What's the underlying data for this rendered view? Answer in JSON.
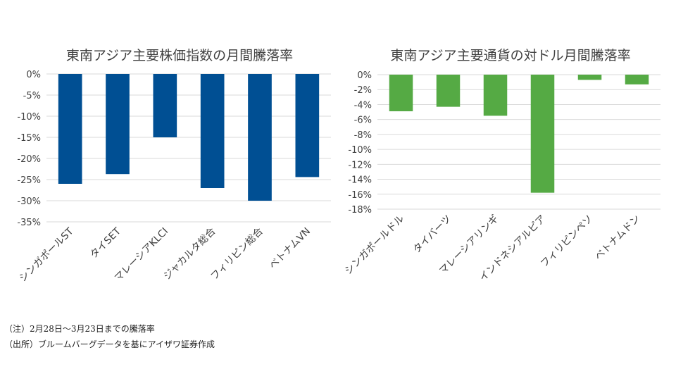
{
  "chart_data": [
    {
      "type": "bar",
      "title": "東南アジア主要株価指数の月間騰落率",
      "categories": [
        "シンガポールST",
        "タイSET",
        "マレーシアKLCI",
        "ジャカルタ総合",
        "フィリピン総合",
        "ベトナムVN"
      ],
      "values": [
        -26,
        -23.7,
        -15,
        -27,
        -30,
        -24.4
      ],
      "ylim": [
        -35,
        0
      ],
      "yticks": [
        0,
        -5,
        -10,
        -15,
        -20,
        -25,
        -30,
        -35
      ],
      "tick_labels": [
        "0%",
        "-5%",
        "-10%",
        "-15%",
        "-20%",
        "-25%",
        "-30%",
        "-35%"
      ],
      "color": "#004f93",
      "grid": true,
      "xlabel": "",
      "ylabel": ""
    },
    {
      "type": "bar",
      "title": "東南アジア主要通貨の対ドル月間騰落率",
      "categories": [
        "シンガポールドル",
        "タイバーツ",
        "マレーシアリンギ",
        "インドネシアルピア",
        "フィリピンペソ",
        "ベトナムドン"
      ],
      "values": [
        -4.9,
        -4.3,
        -5.5,
        -15.8,
        -0.7,
        -1.3
      ],
      "ylim": [
        -18,
        0
      ],
      "yticks": [
        0,
        -2,
        -4,
        -6,
        -8,
        -10,
        -12,
        -14,
        -16,
        -18
      ],
      "tick_labels": [
        "0%",
        "-2%",
        "-4%",
        "-6%",
        "-8%",
        "-10%",
        "-12%",
        "-14%",
        "-16%",
        "-18%"
      ],
      "color": "#55aa44",
      "grid": true,
      "xlabel": "",
      "ylabel": ""
    }
  ],
  "notes": {
    "note1": "（注）2月28日～3月23日までの騰落率",
    "note2": "（出所）ブルームバーグデータを基にアイザワ証券作成"
  }
}
